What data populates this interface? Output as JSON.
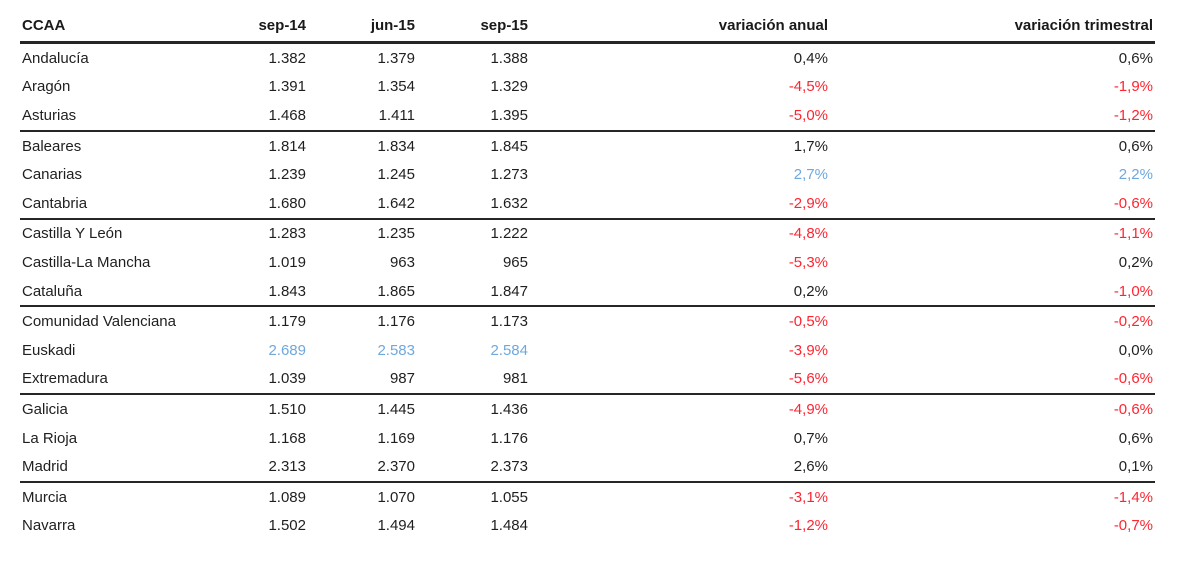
{
  "chart_data": {
    "type": "table",
    "columns": [
      {
        "key": "name",
        "label": "CCAA",
        "align": "left"
      },
      {
        "key": "sep14",
        "label": "sep-14",
        "align": "right"
      },
      {
        "key": "jun15",
        "label": "jun-15",
        "align": "right"
      },
      {
        "key": "sep15",
        "label": "sep-15",
        "align": "right"
      },
      {
        "key": "anual",
        "label": "variación anual",
        "align": "right"
      },
      {
        "key": "trim",
        "label": "variación trimestral",
        "align": "right"
      }
    ],
    "rows": [
      {
        "name": "Andalucía",
        "sep14": "1.382",
        "jun15": "1.379",
        "sep15": "1.388",
        "anual": "0,4%",
        "trim": "0,6%",
        "values_color": "default",
        "anual_color": "default",
        "trim_color": "default",
        "group_end": false
      },
      {
        "name": "Aragón",
        "sep14": "1.391",
        "jun15": "1.354",
        "sep15": "1.329",
        "anual": "-4,5%",
        "trim": "-1,9%",
        "values_color": "default",
        "anual_color": "red",
        "trim_color": "red",
        "group_end": false
      },
      {
        "name": "Asturias",
        "sep14": "1.468",
        "jun15": "1.411",
        "sep15": "1.395",
        "anual": "-5,0%",
        "trim": "-1,2%",
        "values_color": "default",
        "anual_color": "red",
        "trim_color": "red",
        "group_end": true
      },
      {
        "name": "Baleares",
        "sep14": "1.814",
        "jun15": "1.834",
        "sep15": "1.845",
        "anual": "1,7%",
        "trim": "0,6%",
        "values_color": "default",
        "anual_color": "default",
        "trim_color": "default",
        "group_end": false
      },
      {
        "name": "Canarias",
        "sep14": "1.239",
        "jun15": "1.245",
        "sep15": "1.273",
        "anual": "2,7%",
        "trim": "2,2%",
        "values_color": "default",
        "anual_color": "blue",
        "trim_color": "blue",
        "group_end": false
      },
      {
        "name": "Cantabria",
        "sep14": "1.680",
        "jun15": "1.642",
        "sep15": "1.632",
        "anual": "-2,9%",
        "trim": "-0,6%",
        "values_color": "default",
        "anual_color": "red",
        "trim_color": "red",
        "group_end": true
      },
      {
        "name": "Castilla Y León",
        "sep14": "1.283",
        "jun15": "1.235",
        "sep15": "1.222",
        "anual": "-4,8%",
        "trim": "-1,1%",
        "values_color": "default",
        "anual_color": "red",
        "trim_color": "red",
        "group_end": false
      },
      {
        "name": "Castilla-La Mancha",
        "sep14": "1.019",
        "jun15": "963",
        "sep15": "965",
        "anual": "-5,3%",
        "trim": "0,2%",
        "values_color": "default",
        "anual_color": "red",
        "trim_color": "default",
        "group_end": false
      },
      {
        "name": "Cataluña",
        "sep14": "1.843",
        "jun15": "1.865",
        "sep15": "1.847",
        "anual": "0,2%",
        "trim": "-1,0%",
        "values_color": "default",
        "anual_color": "default",
        "trim_color": "red",
        "group_end": true
      },
      {
        "name": "Comunidad Valenciana",
        "sep14": "1.179",
        "jun15": "1.176",
        "sep15": "1.173",
        "anual": "-0,5%",
        "trim": "-0,2%",
        "values_color": "default",
        "anual_color": "red",
        "trim_color": "red",
        "group_end": false
      },
      {
        "name": "Euskadi",
        "sep14": "2.689",
        "jun15": "2.583",
        "sep15": "2.584",
        "anual": "-3,9%",
        "trim": "0,0%",
        "values_color": "blue",
        "anual_color": "red",
        "trim_color": "default",
        "group_end": false
      },
      {
        "name": "Extremadura",
        "sep14": "1.039",
        "jun15": "987",
        "sep15": "981",
        "anual": "-5,6%",
        "trim": "-0,6%",
        "values_color": "default",
        "anual_color": "red",
        "trim_color": "red",
        "group_end": true
      },
      {
        "name": "Galicia",
        "sep14": "1.510",
        "jun15": "1.445",
        "sep15": "1.436",
        "anual": "-4,9%",
        "trim": "-0,6%",
        "values_color": "default",
        "anual_color": "red",
        "trim_color": "red",
        "group_end": false
      },
      {
        "name": "La Rioja",
        "sep14": "1.168",
        "jun15": "1.169",
        "sep15": "1.176",
        "anual": "0,7%",
        "trim": "0,6%",
        "values_color": "default",
        "anual_color": "default",
        "trim_color": "default",
        "group_end": false
      },
      {
        "name": "Madrid",
        "sep14": "2.313",
        "jun15": "2.370",
        "sep15": "2.373",
        "anual": "2,6%",
        "trim": "0,1%",
        "values_color": "default",
        "anual_color": "default",
        "trim_color": "default",
        "group_end": true
      },
      {
        "name": "Murcia",
        "sep14": "1.089",
        "jun15": "1.070",
        "sep15": "1.055",
        "anual": "-3,1%",
        "trim": "-1,4%",
        "values_color": "default",
        "anual_color": "red",
        "trim_color": "red",
        "group_end": false
      },
      {
        "name": "Navarra",
        "sep14": "1.502",
        "jun15": "1.494",
        "sep15": "1.484",
        "anual": "-1,2%",
        "trim": "-0,7%",
        "values_color": "default",
        "anual_color": "red",
        "trim_color": "red",
        "group_end": false
      }
    ]
  },
  "colors": {
    "default": "#1F1F1F",
    "red": "#FF2430",
    "blue": "#6FA8DC",
    "header": "#1A1A1A",
    "line": "#262626"
  }
}
